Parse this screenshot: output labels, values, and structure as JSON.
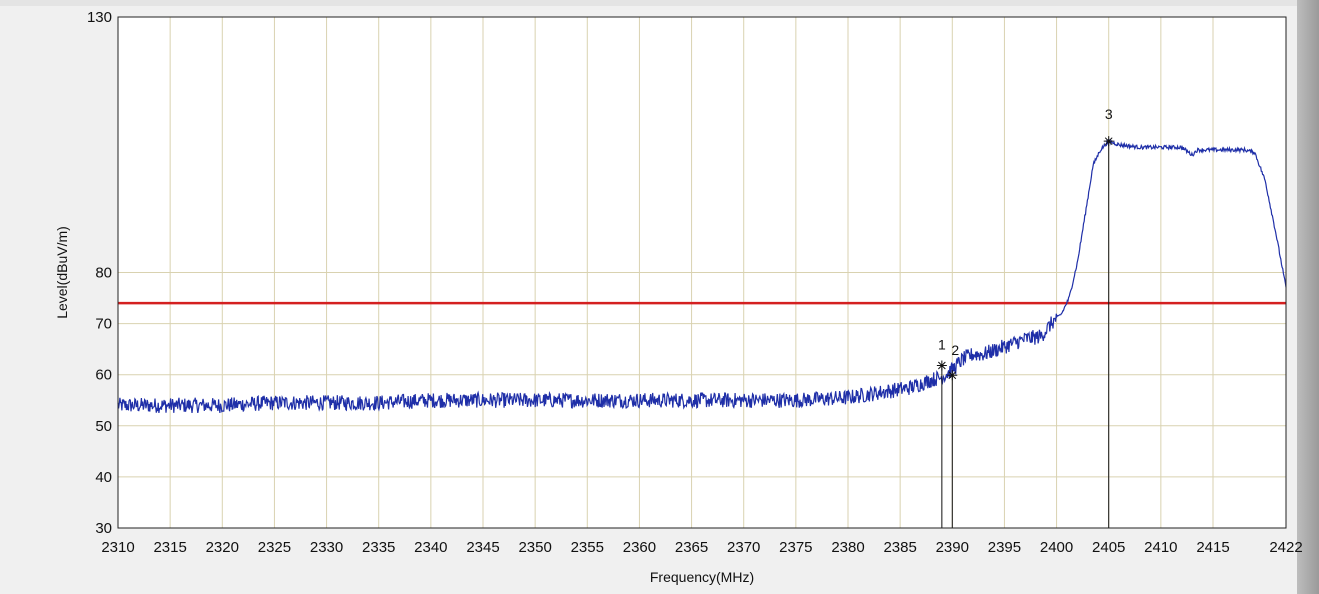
{
  "chart_data": {
    "type": "line",
    "title": "",
    "xlabel": "Frequency(MHz)",
    "ylabel": "Level(dBuV/m)",
    "xlim": [
      2310,
      2422
    ],
    "ylim": [
      30,
      130
    ],
    "x_ticks": [
      2310,
      2315,
      2320,
      2325,
      2330,
      2335,
      2340,
      2345,
      2350,
      2355,
      2360,
      2365,
      2370,
      2375,
      2380,
      2385,
      2390,
      2395,
      2400,
      2405,
      2410,
      2415,
      2422
    ],
    "x_tick_labels": [
      "2310",
      "2315",
      "2320",
      "2325",
      "2330",
      "2335",
      "2340",
      "2345",
      "2350",
      "2355",
      "2360",
      "2365",
      "2370",
      "2375",
      "2380",
      "2385",
      "2390",
      "2395",
      "2400",
      "2405",
      "2410",
      "2415",
      "2422"
    ],
    "y_ticks": [
      30,
      40,
      50,
      60,
      70,
      80,
      130
    ],
    "y_tick_labels": [
      "30",
      "40",
      "50",
      "60",
      "70",
      "80",
      "130"
    ],
    "grid": true,
    "limit_line": {
      "y": 74,
      "color": "#d42020"
    },
    "trace": {
      "color": "#1f2fa8",
      "x": [
        2310,
        2315,
        2320,
        2325,
        2330,
        2335,
        2340,
        2345,
        2350,
        2355,
        2360,
        2365,
        2370,
        2375,
        2380,
        2383,
        2386,
        2388,
        2389.0,
        2390,
        2391,
        2392,
        2393,
        2395,
        2397,
        2398.5,
        2399.5,
        2400.5,
        2401.2,
        2402,
        2402.8,
        2403.5,
        2404.2,
        2405.0,
        2406,
        2408,
        2410,
        2412,
        2413,
        2413.5,
        2414,
        2416,
        2418,
        2419,
        2420,
        2421,
        2422
      ],
      "y": [
        54,
        54,
        54,
        54.5,
        54.5,
        54.5,
        55,
        55,
        55,
        55,
        55,
        55,
        55,
        55,
        55.5,
        56.5,
        57.5,
        59,
        59.5,
        61,
        63,
        64,
        64,
        65.5,
        67,
        67.5,
        70,
        72,
        75,
        82,
        92,
        101,
        104,
        105.7,
        105,
        104.5,
        104.5,
        104.5,
        103,
        104,
        104,
        104,
        104,
        103.5,
        98,
        88,
        77
      ]
    },
    "noise_amplitude": 1.5,
    "markers": [
      {
        "label": "1",
        "x": 2389.0,
        "y": 61.8
      },
      {
        "label": "2",
        "x": 2390.0,
        "y": 59.9
      },
      {
        "label": "3",
        "x": 2405.0,
        "y": 105.7
      }
    ]
  }
}
